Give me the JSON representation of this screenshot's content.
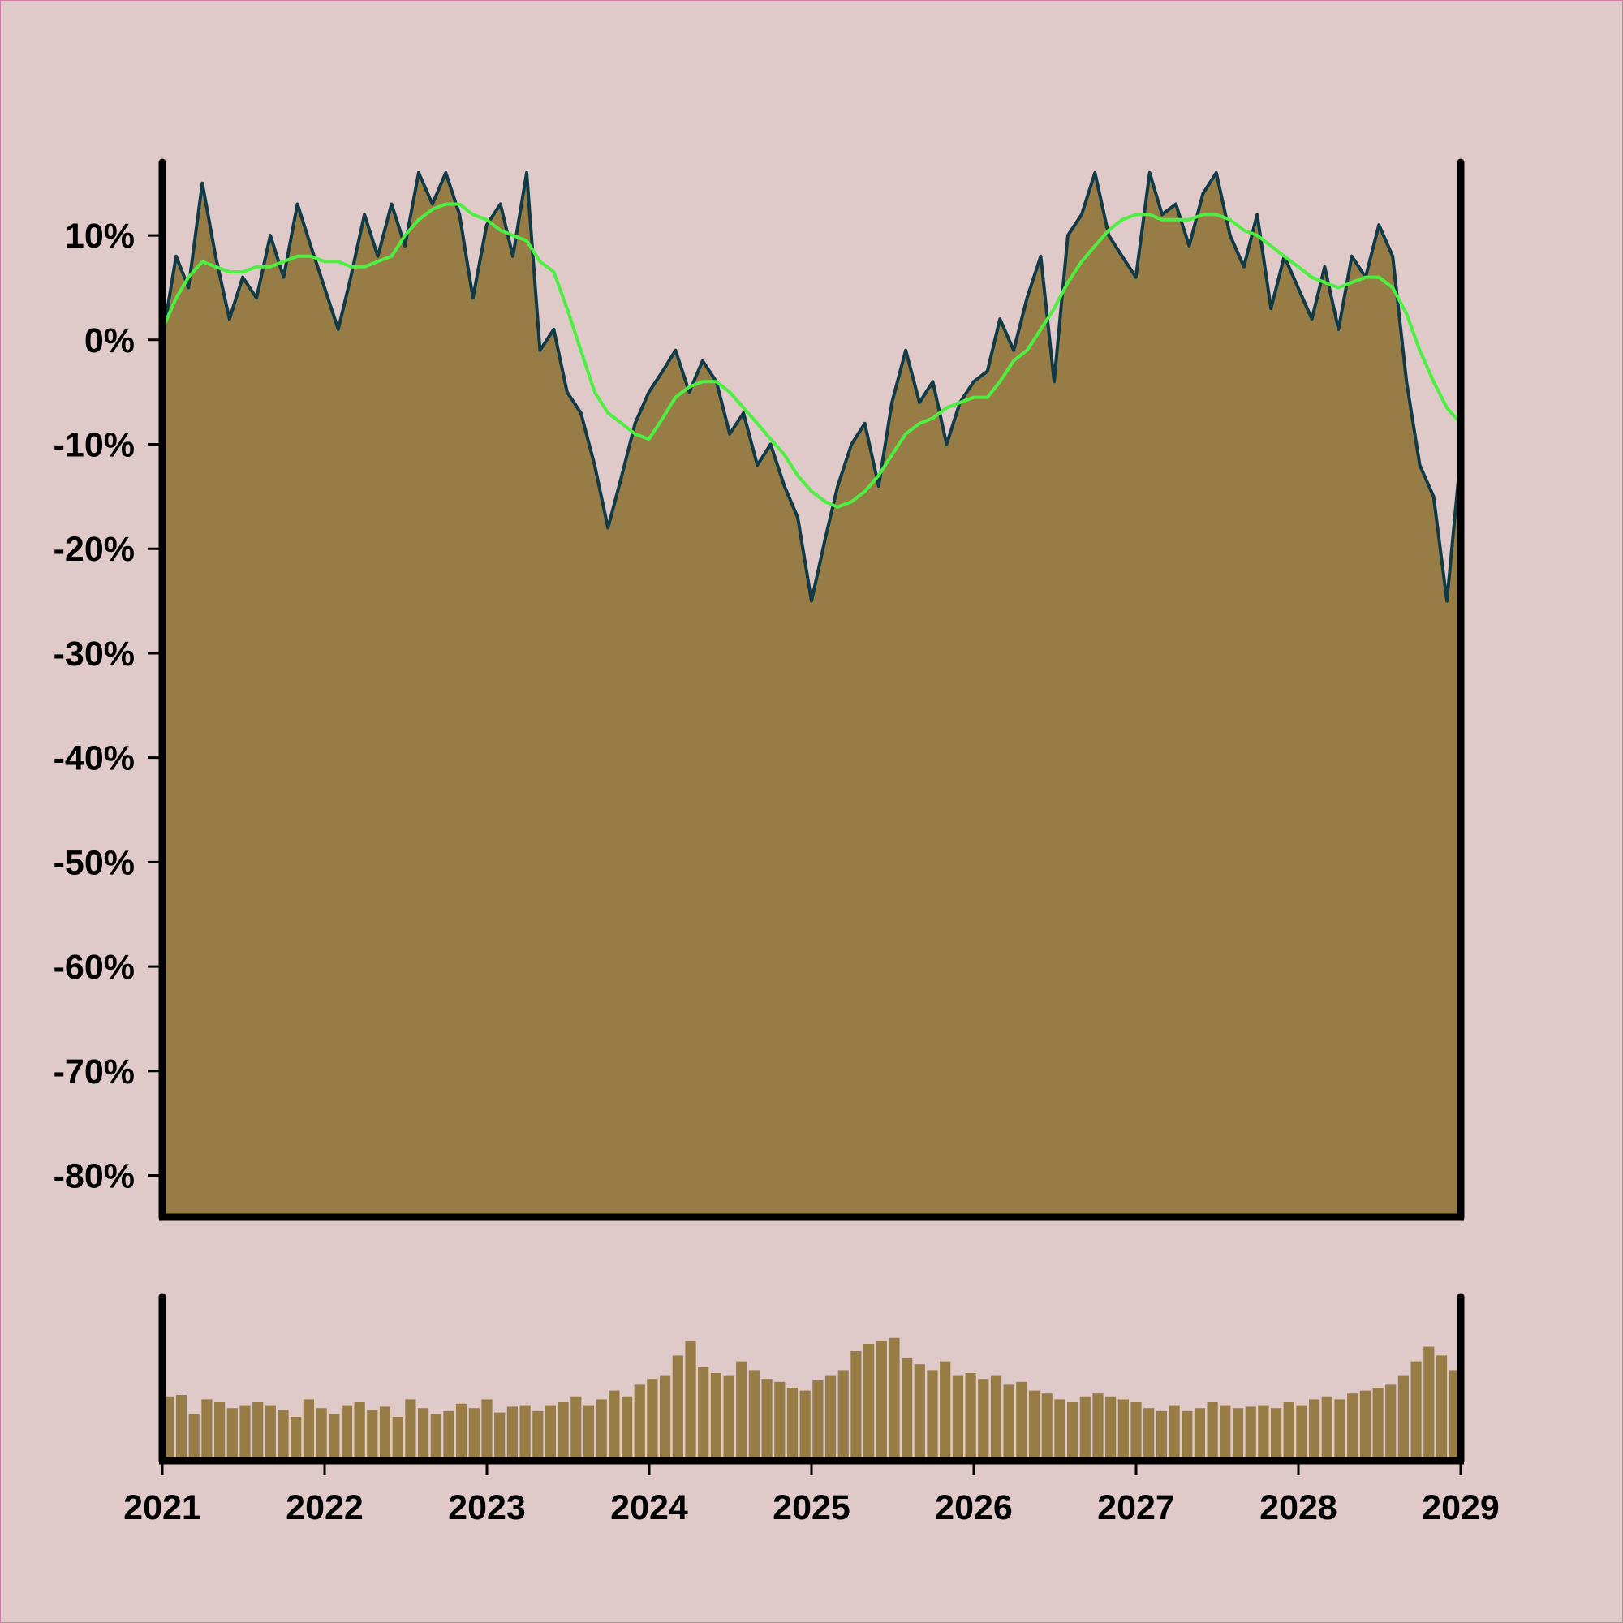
{
  "colors": {
    "background": "#dfc9c9",
    "area_fill": "#987c45",
    "price_line": "#0f3a46",
    "moving_average": "#4cf040",
    "volume_bars": "#987c45",
    "axis": "#000000"
  },
  "chart_data": [
    {
      "type": "area",
      "title": "",
      "xlabel": "",
      "ylabel": "",
      "ylim": [
        -84,
        17
      ],
      "xlim": [
        "2021-01-01",
        "2029-01-01"
      ],
      "y_tick_labels": [
        "10%",
        "0%",
        "-10%",
        "-20%",
        "-30%",
        "-40%",
        "-50%",
        "-60%",
        "-70%",
        "-80%"
      ],
      "y_tick_values": [
        10,
        0,
        -10,
        -20,
        -30,
        -40,
        -50,
        -60,
        -70,
        -80
      ],
      "grid": false,
      "legend": "none",
      "series": [
        {
          "points": [
            [
              "2021-01-01",
              0
            ],
            [
              "2021-02-01",
              8
            ],
            [
              "2021-03-01",
              5
            ],
            [
              "2021-04-01",
              15
            ],
            [
              "2021-05-01",
              8
            ],
            [
              "2021-06-01",
              2
            ],
            [
              "2021-07-01",
              6
            ],
            [
              "2021-08-01",
              4
            ],
            [
              "2021-09-01",
              10
            ],
            [
              "2021-10-01",
              6
            ],
            [
              "2021-11-01",
              13
            ],
            [
              "2021-12-01",
              9
            ],
            [
              "2022-01-01",
              5
            ],
            [
              "2022-02-01",
              1
            ],
            [
              "2022-03-01",
              6
            ],
            [
              "2022-04-01",
              12
            ],
            [
              "2022-05-01",
              8
            ],
            [
              "2022-06-01",
              13
            ],
            [
              "2022-07-01",
              9
            ],
            [
              "2022-08-01",
              16
            ],
            [
              "2022-09-01",
              13
            ],
            [
              "2022-10-01",
              16
            ],
            [
              "2022-11-01",
              12
            ],
            [
              "2022-12-01",
              4
            ],
            [
              "2023-01-01",
              11
            ],
            [
              "2023-02-01",
              13
            ],
            [
              "2023-03-01",
              8
            ],
            [
              "2023-04-01",
              16
            ],
            [
              "2023-05-01",
              -1
            ],
            [
              "2023-06-01",
              1
            ],
            [
              "2023-07-01",
              -5
            ],
            [
              "2023-08-01",
              -7
            ],
            [
              "2023-09-01",
              -12
            ],
            [
              "2023-10-01",
              -18
            ],
            [
              "2023-11-01",
              -13
            ],
            [
              "2023-12-01",
              -8
            ],
            [
              "2024-01-01",
              -5
            ],
            [
              "2024-02-01",
              -3
            ],
            [
              "2024-03-01",
              -1
            ],
            [
              "2024-04-01",
              -5
            ],
            [
              "2024-05-01",
              -2
            ],
            [
              "2024-06-01",
              -4
            ],
            [
              "2024-07-01",
              -9
            ],
            [
              "2024-08-01",
              -7
            ],
            [
              "2024-09-01",
              -12
            ],
            [
              "2024-10-01",
              -10
            ],
            [
              "2024-11-01",
              -14
            ],
            [
              "2024-12-01",
              -17
            ],
            [
              "2025-01-01",
              -25
            ],
            [
              "2025-02-01",
              -19
            ],
            [
              "2025-03-01",
              -14
            ],
            [
              "2025-04-01",
              -10
            ],
            [
              "2025-05-01",
              -8
            ],
            [
              "2025-06-01",
              -14
            ],
            [
              "2025-07-01",
              -6
            ],
            [
              "2025-08-01",
              -1
            ],
            [
              "2025-09-01",
              -6
            ],
            [
              "2025-10-01",
              -4
            ],
            [
              "2025-11-01",
              -10
            ],
            [
              "2025-12-01",
              -6
            ],
            [
              "2026-01-01",
              -4
            ],
            [
              "2026-02-01",
              -3
            ],
            [
              "2026-03-01",
              2
            ],
            [
              "2026-04-01",
              -1
            ],
            [
              "2026-05-01",
              4
            ],
            [
              "2026-06-01",
              8
            ],
            [
              "2026-07-01",
              -4
            ],
            [
              "2026-08-01",
              10
            ],
            [
              "2026-09-01",
              12
            ],
            [
              "2026-10-01",
              16
            ],
            [
              "2026-11-01",
              10
            ],
            [
              "2026-12-01",
              8
            ],
            [
              "2027-01-01",
              6
            ],
            [
              "2027-02-01",
              16
            ],
            [
              "2027-03-01",
              12
            ],
            [
              "2027-04-01",
              13
            ],
            [
              "2027-05-01",
              9
            ],
            [
              "2027-06-01",
              14
            ],
            [
              "2027-07-01",
              16
            ],
            [
              "2027-08-01",
              10
            ],
            [
              "2027-09-01",
              7
            ],
            [
              "2027-10-01",
              12
            ],
            [
              "2027-11-01",
              3
            ],
            [
              "2027-12-01",
              8
            ],
            [
              "2028-01-01",
              5
            ],
            [
              "2028-02-01",
              2
            ],
            [
              "2028-03-01",
              7
            ],
            [
              "2028-04-01",
              1
            ],
            [
              "2028-05-01",
              8
            ],
            [
              "2028-06-01",
              6
            ],
            [
              "2028-07-01",
              11
            ],
            [
              "2028-08-01",
              8
            ],
            [
              "2028-09-01",
              -4
            ],
            [
              "2028-10-01",
              -12
            ],
            [
              "2028-11-01",
              -15
            ],
            [
              "2028-12-01",
              -25
            ],
            [
              "2029-01-01",
              -11
            ]
          ]
        },
        {
          "type": "line",
          "points": [
            [
              "2021-01-01",
              1
            ],
            [
              "2021-02-01",
              4
            ],
            [
              "2021-03-01",
              6
            ],
            [
              "2021-04-01",
              7.5
            ],
            [
              "2021-05-01",
              7
            ],
            [
              "2021-06-01",
              6.5
            ],
            [
              "2021-07-01",
              6.5
            ],
            [
              "2021-08-01",
              7
            ],
            [
              "2021-09-01",
              7
            ],
            [
              "2021-10-01",
              7.5
            ],
            [
              "2021-11-01",
              8
            ],
            [
              "2021-12-01",
              8
            ],
            [
              "2022-01-01",
              7.5
            ],
            [
              "2022-02-01",
              7.5
            ],
            [
              "2022-03-01",
              7
            ],
            [
              "2022-04-01",
              7
            ],
            [
              "2022-05-01",
              7.5
            ],
            [
              "2022-06-01",
              8
            ],
            [
              "2022-07-01",
              10
            ],
            [
              "2022-08-01",
              11.5
            ],
            [
              "2022-09-01",
              12.5
            ],
            [
              "2022-10-01",
              13
            ],
            [
              "2022-11-01",
              13
            ],
            [
              "2022-12-01",
              12
            ],
            [
              "2023-01-01",
              11.5
            ],
            [
              "2023-02-01",
              10.5
            ],
            [
              "2023-03-01",
              10
            ],
            [
              "2023-04-01",
              9.5
            ],
            [
              "2023-05-01",
              7.5
            ],
            [
              "2023-06-01",
              6.5
            ],
            [
              "2023-07-01",
              3
            ],
            [
              "2023-08-01",
              -1
            ],
            [
              "2023-09-01",
              -5
            ],
            [
              "2023-10-01",
              -7
            ],
            [
              "2023-11-01",
              -8
            ],
            [
              "2023-12-01",
              -9
            ],
            [
              "2024-01-01",
              -9.5
            ],
            [
              "2024-02-01",
              -7.5
            ],
            [
              "2024-03-01",
              -5.5
            ],
            [
              "2024-04-01",
              -4.5
            ],
            [
              "2024-05-01",
              -4
            ],
            [
              "2024-06-01",
              -4
            ],
            [
              "2024-07-01",
              -5
            ],
            [
              "2024-08-01",
              -6.5
            ],
            [
              "2024-09-01",
              -8
            ],
            [
              "2024-10-01",
              -9.5
            ],
            [
              "2024-11-01",
              -11
            ],
            [
              "2024-12-01",
              -13
            ],
            [
              "2025-01-01",
              -14.5
            ],
            [
              "2025-02-01",
              -15.5
            ],
            [
              "2025-03-01",
              -16
            ],
            [
              "2025-04-01",
              -15.5
            ],
            [
              "2025-05-01",
              -14.5
            ],
            [
              "2025-06-01",
              -13
            ],
            [
              "2025-07-01",
              -11
            ],
            [
              "2025-08-01",
              -9
            ],
            [
              "2025-09-01",
              -8
            ],
            [
              "2025-10-01",
              -7.5
            ],
            [
              "2025-11-01",
              -6.5
            ],
            [
              "2025-12-01",
              -6
            ],
            [
              "2026-01-01",
              -5.5
            ],
            [
              "2026-02-01",
              -5.5
            ],
            [
              "2026-03-01",
              -4
            ],
            [
              "2026-04-01",
              -2
            ],
            [
              "2026-05-01",
              -1
            ],
            [
              "2026-06-01",
              1
            ],
            [
              "2026-07-01",
              3
            ],
            [
              "2026-08-01",
              5.5
            ],
            [
              "2026-09-01",
              7.5
            ],
            [
              "2026-10-01",
              9
            ],
            [
              "2026-11-01",
              10.5
            ],
            [
              "2026-12-01",
              11.5
            ],
            [
              "2027-01-01",
              12
            ],
            [
              "2027-02-01",
              12
            ],
            [
              "2027-03-01",
              11.5
            ],
            [
              "2027-04-01",
              11.5
            ],
            [
              "2027-05-01",
              11.5
            ],
            [
              "2027-06-01",
              12
            ],
            [
              "2027-07-01",
              12
            ],
            [
              "2027-08-01",
              11.5
            ],
            [
              "2027-09-01",
              10.5
            ],
            [
              "2027-10-01",
              10
            ],
            [
              "2027-11-01",
              9
            ],
            [
              "2027-12-01",
              8
            ],
            [
              "2028-01-01",
              7
            ],
            [
              "2028-02-01",
              6
            ],
            [
              "2028-03-01",
              5.5
            ],
            [
              "2028-04-01",
              5
            ],
            [
              "2028-05-01",
              5.5
            ],
            [
              "2028-06-01",
              6
            ],
            [
              "2028-07-01",
              6
            ],
            [
              "2028-08-01",
              5
            ],
            [
              "2028-09-01",
              2.5
            ],
            [
              "2028-10-01",
              -1
            ],
            [
              "2028-11-01",
              -4
            ],
            [
              "2028-12-01",
              -6.5
            ],
            [
              "2029-01-01",
              -8
            ]
          ]
        }
      ]
    },
    {
      "type": "bar",
      "title": "",
      "xlabel": "",
      "ylabel": "",
      "x_tick_labels": [
        "2021",
        "2022",
        "2023",
        "2024",
        "2025",
        "2026",
        "2027",
        "2028",
        "2029"
      ],
      "ylim": [
        0,
        1
      ],
      "grid": false,
      "series": [
        {
          "values": [
            0.44,
            0.45,
            0.32,
            0.42,
            0.4,
            0.36,
            0.38,
            0.4,
            0.38,
            0.35,
            0.3,
            0.42,
            0.36,
            0.32,
            0.38,
            0.4,
            0.35,
            0.37,
            0.3,
            0.42,
            0.36,
            0.32,
            0.34,
            0.39,
            0.36,
            0.42,
            0.33,
            0.37,
            0.38,
            0.34,
            0.38,
            0.4,
            0.44,
            0.38,
            0.42,
            0.48,
            0.44,
            0.52,
            0.56,
            0.58,
            0.72,
            0.82,
            0.64,
            0.6,
            0.58,
            0.68,
            0.62,
            0.56,
            0.54,
            0.5,
            0.48,
            0.55,
            0.58,
            0.62,
            0.75,
            0.8,
            0.82,
            0.84,
            0.7,
            0.66,
            0.62,
            0.68,
            0.58,
            0.6,
            0.56,
            0.58,
            0.52,
            0.54,
            0.48,
            0.46,
            0.42,
            0.4,
            0.44,
            0.46,
            0.44,
            0.42,
            0.4,
            0.36,
            0.34,
            0.38,
            0.34,
            0.36,
            0.4,
            0.38,
            0.36,
            0.37,
            0.38,
            0.36,
            0.4,
            0.38,
            0.42,
            0.44,
            0.42,
            0.46,
            0.48,
            0.5,
            0.52,
            0.58,
            0.68,
            0.78,
            0.72,
            0.62
          ]
        }
      ]
    }
  ]
}
